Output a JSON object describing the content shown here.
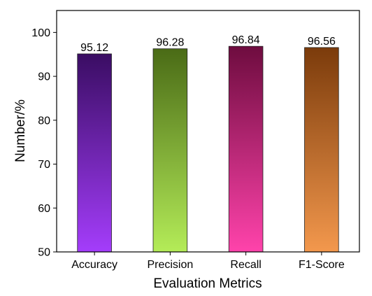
{
  "chart_data": {
    "type": "bar",
    "categories": [
      "Accuracy",
      "Precision",
      "Recall",
      "F1-Score"
    ],
    "values": [
      95.12,
      96.28,
      96.84,
      96.56
    ],
    "value_labels": [
      "95.12",
      "96.28",
      "96.84",
      "96.56"
    ],
    "xlabel": "Evaluation Metrics",
    "ylabel": "Number/%",
    "ylim": [
      50,
      105
    ],
    "yticks": [
      50,
      60,
      70,
      80,
      90,
      100
    ],
    "grid": false,
    "bar_gradients": [
      {
        "top": "#3a0d63",
        "bottom": "#a43dfb"
      },
      {
        "top": "#4a6b16",
        "bottom": "#b4ec58"
      },
      {
        "top": "#6e0c3f",
        "bottom": "#ff43ab"
      },
      {
        "top": "#7b3b0b",
        "bottom": "#f3984d"
      }
    ]
  }
}
